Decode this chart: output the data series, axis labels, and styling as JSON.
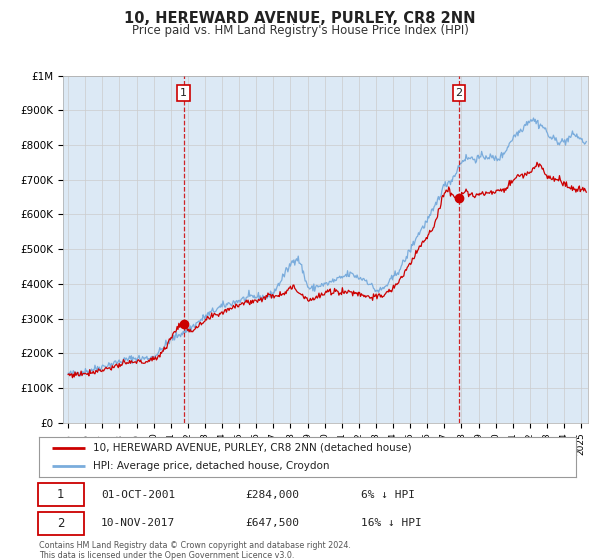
{
  "title": "10, HEREWARD AVENUE, PURLEY, CR8 2NN",
  "subtitle": "Price paid vs. HM Land Registry's House Price Index (HPI)",
  "xlim": [
    1994.7,
    2025.4
  ],
  "ylim": [
    0,
    1000000
  ],
  "yticks": [
    0,
    100000,
    200000,
    300000,
    400000,
    500000,
    600000,
    700000,
    800000,
    900000,
    1000000
  ],
  "ytick_labels": [
    "£0",
    "£100K",
    "£200K",
    "£300K",
    "£400K",
    "£500K",
    "£600K",
    "£700K",
    "£800K",
    "£900K",
    "£1M"
  ],
  "sale1_x": 2001.75,
  "sale1_y": 284000,
  "sale1_label": "1",
  "sale1_date": "01-OCT-2001",
  "sale1_price": "£284,000",
  "sale1_pct": "6% ↓ HPI",
  "sale2_x": 2017.86,
  "sale2_y": 647500,
  "sale2_label": "2",
  "sale2_date": "10-NOV-2017",
  "sale2_price": "£647,500",
  "sale2_pct": "16% ↓ HPI",
  "red_line_color": "#cc0000",
  "blue_line_color": "#7aacdc",
  "grid_color": "#cccccc",
  "bg_color": "#ffffff",
  "plot_bg_color": "#dce9f5",
  "legend_label_red": "10, HEREWARD AVENUE, PURLEY, CR8 2NN (detached house)",
  "legend_label_blue": "HPI: Average price, detached house, Croydon",
  "footer": "Contains HM Land Registry data © Crown copyright and database right 2024.\nThis data is licensed under the Open Government Licence v3.0."
}
